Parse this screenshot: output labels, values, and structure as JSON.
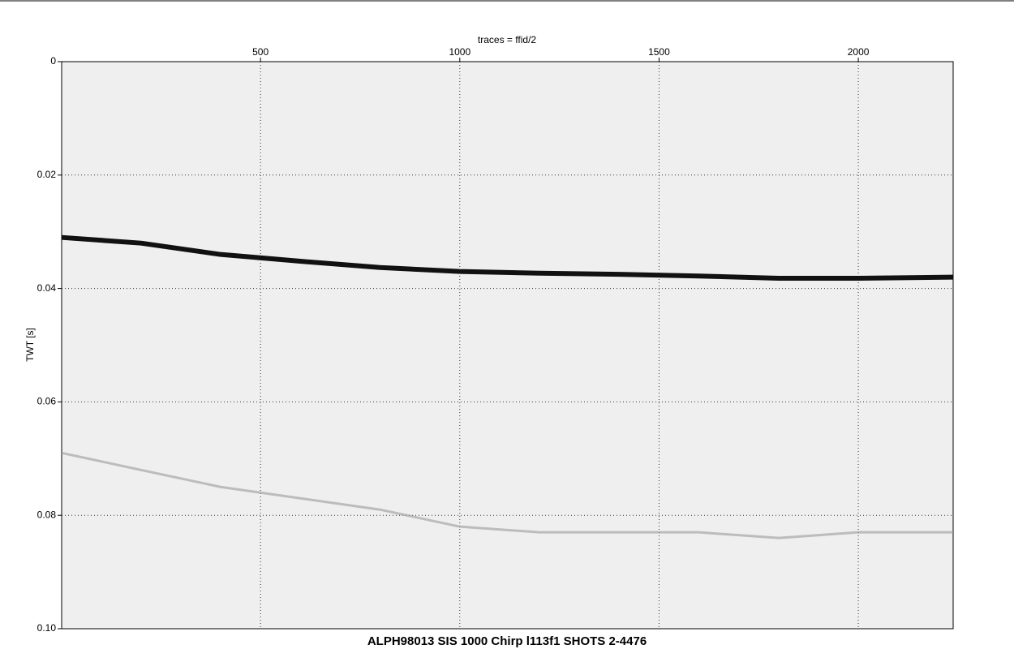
{
  "chart_data": {
    "type": "seismic",
    "title": "ALPH98013 SIS 1000 Chirp l113f1 SHOTS 2-4476",
    "x_label": "traces = ffid/2",
    "y_label": "TWT [s]",
    "xlim": [
      1,
      2238
    ],
    "xticks": [
      500,
      1000,
      1500,
      2000
    ],
    "ylim": [
      0,
      {
        "value": 0.1,
        "label": "0.10"
      }
    ],
    "yticks": [
      0,
      0.02,
      0.04,
      0.06,
      0.08,
      {
        "value": 0.1,
        "label": "0.10"
      }
    ],
    "y_inverted": true,
    "grid": true,
    "x": [
      1,
      200,
      400,
      600,
      800,
      1000,
      1200,
      1400,
      1600,
      1800,
      2000,
      2238
    ],
    "series": [
      {
        "color": "#111111",
        "values": [
          0.031,
          0.032,
          0.034,
          0.0352,
          0.0363,
          0.037,
          0.0373,
          0.0375,
          0.0378,
          0.0382,
          0.0382,
          0.038
        ]
      },
      {
        "color": "#9a9a9a",
        "values": [
          0.069,
          0.072,
          0.075,
          0.077,
          0.079,
          0.082,
          0.083,
          0.083,
          0.083,
          0.084,
          0.083,
          0.083
        ]
      }
    ]
  }
}
